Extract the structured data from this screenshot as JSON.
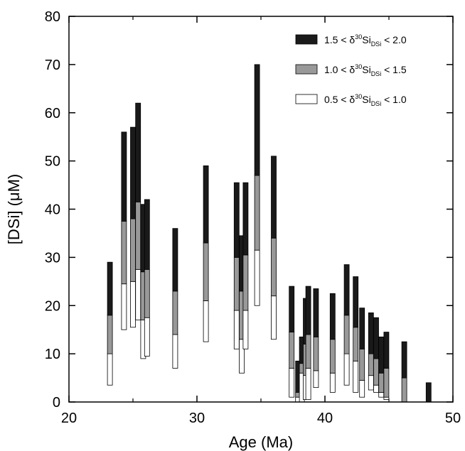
{
  "chart_data": {
    "type": "bar",
    "xlabel": "Age (Ma)",
    "ylabel": "[DSi] (μM)",
    "xlim": [
      20,
      50
    ],
    "ylim": [
      0,
      80
    ],
    "x_ticks": [
      20,
      30,
      40,
      50
    ],
    "y_ticks": [
      0,
      10,
      20,
      30,
      40,
      50,
      60,
      70,
      80
    ],
    "grid": false,
    "legend_position": "top-right",
    "series": [
      {
        "key": "high",
        "name_parts": {
          "pre": "1.5 < δ",
          "sup": "30",
          "mid": "Si",
          "sub": "DSi",
          "post": " < 2.0"
        },
        "color": "#1a1a1a"
      },
      {
        "key": "mid",
        "name_parts": {
          "pre": "1.0 < δ",
          "sup": "30",
          "mid": "Si",
          "sub": "DSi",
          "post": " < 1.5"
        },
        "color": "#999999"
      },
      {
        "key": "low",
        "name_parts": {
          "pre": "0.5 < δ",
          "sup": "30",
          "mid": "Si",
          "sub": "DSi",
          "post": " < 1.0"
        },
        "color": "#ffffff"
      }
    ],
    "bars": [
      {
        "age": 23.2,
        "low": [
          3.5,
          10
        ],
        "mid": [
          10,
          18
        ],
        "high": [
          18,
          29
        ]
      },
      {
        "age": 24.3,
        "low": [
          15,
          24.5
        ],
        "mid": [
          24.5,
          37.5
        ],
        "high": [
          37.5,
          56
        ]
      },
      {
        "age": 25.0,
        "low": [
          15.5,
          25
        ],
        "mid": [
          25,
          38
        ],
        "high": [
          38,
          57
        ]
      },
      {
        "age": 25.4,
        "low": [
          17,
          27.5
        ],
        "mid": [
          27.5,
          41.5
        ],
        "high": [
          41.5,
          62
        ]
      },
      {
        "age": 25.8,
        "low": [
          9,
          17
        ],
        "mid": [
          17,
          27
        ],
        "high": [
          27,
          41
        ]
      },
      {
        "age": 26.1,
        "low": [
          9.5,
          17.5
        ],
        "mid": [
          17.5,
          27.5
        ],
        "high": [
          27.5,
          42
        ]
      },
      {
        "age": 28.3,
        "low": [
          7,
          14
        ],
        "mid": [
          14,
          23
        ],
        "high": [
          23,
          36
        ]
      },
      {
        "age": 30.7,
        "low": [
          12.5,
          21
        ],
        "mid": [
          21,
          33
        ],
        "high": [
          33,
          49
        ]
      },
      {
        "age": 33.1,
        "low": [
          11,
          19
        ],
        "mid": [
          19,
          30
        ],
        "high": [
          30,
          45.5
        ]
      },
      {
        "age": 33.5,
        "low": [
          6,
          13
        ],
        "mid": [
          13,
          23
        ],
        "high": [
          23,
          34.5
        ]
      },
      {
        "age": 33.8,
        "low": [
          11,
          19
        ],
        "mid": [
          19,
          30.5
        ],
        "high": [
          30.5,
          45.5
        ]
      },
      {
        "age": 34.7,
        "low": [
          20,
          31.5
        ],
        "mid": [
          31.5,
          47
        ],
        "high": [
          47,
          70
        ]
      },
      {
        "age": 36.0,
        "low": [
          13,
          22
        ],
        "mid": [
          22,
          34
        ],
        "high": [
          34,
          51
        ]
      },
      {
        "age": 37.4,
        "low": [
          1,
          7
        ],
        "mid": [
          7,
          14.5
        ],
        "high": [
          14.5,
          24
        ]
      },
      {
        "age": 37.9,
        "low": [
          0,
          1
        ],
        "mid": [
          1,
          2
        ],
        "high": [
          2,
          8.5
        ]
      },
      {
        "age": 38.2,
        "low": [
          0,
          6
        ],
        "mid": [
          6,
          8
        ],
        "high": [
          8,
          13.5
        ]
      },
      {
        "age": 38.5,
        "low": [
          0.5,
          5.5
        ],
        "mid": [
          5.5,
          12
        ],
        "high": [
          12,
          21.5
        ]
      },
      {
        "age": 38.7,
        "low": [
          0.5,
          7
        ],
        "mid": [
          7,
          14
        ],
        "high": [
          14,
          24
        ]
      },
      {
        "age": 39.3,
        "low": [
          3,
          6.5
        ],
        "mid": [
          6.5,
          13.5
        ],
        "high": [
          13.5,
          23.5
        ]
      },
      {
        "age": 40.6,
        "low": [
          2,
          6
        ],
        "mid": [
          6,
          13
        ],
        "high": [
          13,
          22.5
        ]
      },
      {
        "age": 41.7,
        "low": [
          3.5,
          10
        ],
        "mid": [
          10,
          18
        ],
        "high": [
          18,
          28.5
        ]
      },
      {
        "age": 42.4,
        "low": [
          2,
          8.5
        ],
        "mid": [
          8.5,
          15.5
        ],
        "high": [
          15.5,
          26
        ]
      },
      {
        "age": 42.9,
        "low": [
          1,
          4.5
        ],
        "mid": [
          4.5,
          11
        ],
        "high": [
          11,
          19.5
        ]
      },
      {
        "age": 43.6,
        "low": [
          2.5,
          5.5
        ],
        "mid": [
          5.5,
          10
        ],
        "high": [
          10,
          18.5
        ]
      },
      {
        "age": 44.0,
        "low": [
          2,
          3.5
        ],
        "mid": [
          3.5,
          9
        ],
        "high": [
          9,
          17.5
        ]
      },
      {
        "age": 44.4,
        "low": [
          1,
          2
        ],
        "mid": [
          2,
          6
        ],
        "high": [
          6,
          13.5
        ]
      },
      {
        "age": 44.8,
        "low": [
          0.5,
          1
        ],
        "mid": [
          1,
          7
        ],
        "high": [
          7,
          14.5
        ]
      },
      {
        "age": 46.2,
        "low": [
          0,
          0
        ],
        "mid": [
          0,
          5
        ],
        "high": [
          5,
          12.5
        ]
      },
      {
        "age": 48.1,
        "low": [
          0,
          0
        ],
        "mid": [
          0,
          0
        ],
        "high": [
          0,
          4
        ]
      }
    ]
  }
}
